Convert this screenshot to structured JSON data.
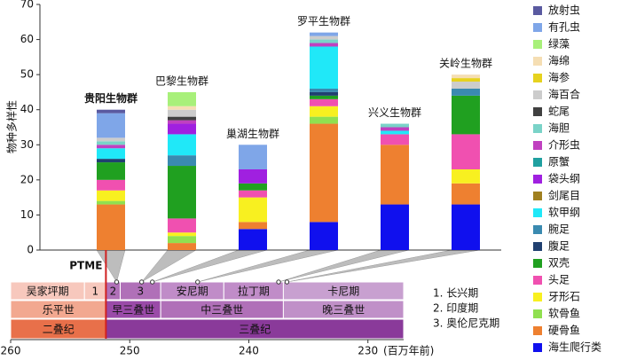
{
  "chart_data": {
    "type": "stacked-bar",
    "ylabel": "物种多样性",
    "ylim": [
      0,
      70
    ],
    "yticks": [
      0,
      10,
      20,
      30,
      40,
      50,
      60,
      70
    ],
    "categories": [
      "贵阳生物群",
      "巴黎生物群",
      "巢湖生物群",
      "罗平生物群",
      "兴义生物群",
      "关岭生物群"
    ],
    "ages": [
      251.1,
      249.0,
      248.1,
      244.3,
      237.5,
      236.8
    ],
    "series": [
      {
        "name": "放射虫",
        "color": "#5a5aa0",
        "values": [
          1,
          0,
          0,
          0,
          0,
          0
        ]
      },
      {
        "name": "有孔虫",
        "color": "#7fa6e8",
        "values": [
          7,
          0,
          7,
          1,
          0,
          0
        ]
      },
      {
        "name": "绿藻",
        "color": "#a8f07a",
        "values": [
          0,
          4,
          0,
          0,
          0,
          0
        ]
      },
      {
        "name": "海绵",
        "color": "#f5deb3",
        "values": [
          0,
          1,
          0,
          0,
          0,
          1
        ]
      },
      {
        "name": "海参",
        "color": "#e6d21e",
        "values": [
          0,
          0,
          0,
          0,
          0,
          1
        ]
      },
      {
        "name": "海百合",
        "color": "#cccccc",
        "values": [
          1,
          2,
          0,
          1,
          0,
          2
        ]
      },
      {
        "name": "蛇尾",
        "color": "#404040",
        "values": [
          0,
          1,
          0,
          0,
          0,
          0
        ]
      },
      {
        "name": "海胆",
        "color": "#7ad3c8",
        "values": [
          1,
          0,
          0,
          1,
          1,
          0
        ]
      },
      {
        "name": "介形虫",
        "color": "#c040c0",
        "values": [
          1,
          1,
          0,
          1,
          1,
          0
        ]
      },
      {
        "name": "原蟹",
        "color": "#20a0a0",
        "values": [
          0,
          0,
          0,
          0,
          0,
          0
        ]
      },
      {
        "name": "袋头纲",
        "color": "#a020e0",
        "values": [
          0,
          3,
          4,
          0,
          0,
          0
        ]
      },
      {
        "name": "剑尾目",
        "color": "#a08020",
        "values": [
          0,
          0,
          0,
          0,
          0,
          0
        ]
      },
      {
        "name": "软甲纲",
        "color": "#20e8f8",
        "values": [
          3,
          6,
          0,
          12,
          1,
          0
        ]
      },
      {
        "name": "腕足",
        "color": "#3a8ab0",
        "values": [
          0,
          3,
          0,
          1,
          0,
          2
        ]
      },
      {
        "name": "腹足",
        "color": "#204070",
        "values": [
          1,
          0,
          0,
          1,
          0,
          0
        ]
      },
      {
        "name": "双壳",
        "color": "#20a020",
        "values": [
          5,
          15,
          2,
          1,
          0,
          11
        ]
      },
      {
        "name": "头足",
        "color": "#f050b0",
        "values": [
          3,
          4,
          2,
          2,
          3,
          10
        ]
      },
      {
        "name": "牙形石",
        "color": "#f8f020",
        "values": [
          3,
          1,
          7,
          3,
          0,
          4
        ]
      },
      {
        "name": "软骨鱼",
        "color": "#90e050",
        "values": [
          1,
          2,
          0,
          2,
          0,
          0
        ]
      },
      {
        "name": "硬骨鱼",
        "color": "#ee8030",
        "values": [
          13,
          2,
          2,
          28,
          17,
          6
        ]
      },
      {
        "name": "海生爬行类",
        "color": "#1010ee",
        "values": [
          0,
          0,
          6,
          8,
          13,
          13
        ]
      }
    ]
  },
  "timescale": {
    "xlim": [
      260,
      227
    ],
    "xticks": [
      260,
      250,
      240,
      230
    ],
    "xlabel": "(百万年前)",
    "ptme": {
      "label": "PTME",
      "value": 252,
      "color": "#d02020"
    },
    "rows": [
      [
        {
          "name": "吴家坪期",
          "start": 260,
          "end": 253.8,
          "color": "#f7c8bd"
        },
        {
          "name": "1",
          "start": 253.8,
          "end": 252,
          "color": "#f7c8bd"
        },
        {
          "name": "2",
          "start": 252,
          "end": 250.8,
          "color": "#b070b8"
        },
        {
          "name": "3",
          "start": 250.8,
          "end": 247.4,
          "color": "#b070b8"
        },
        {
          "name": "安尼期",
          "start": 247.4,
          "end": 242.1,
          "color": "#c08cc8"
        },
        {
          "name": "拉丁期",
          "start": 242.1,
          "end": 237.1,
          "color": "#c08cc8"
        },
        {
          "name": "卡尼期",
          "start": 237.1,
          "end": 227,
          "color": "#c8a0d0"
        }
      ],
      [
        {
          "name": "乐平世",
          "start": 260,
          "end": 252,
          "color": "#f2a890"
        },
        {
          "name": "早三叠世",
          "start": 252,
          "end": 247.4,
          "color": "#9a4aa8"
        },
        {
          "name": "中三叠世",
          "start": 247.4,
          "end": 237.1,
          "color": "#b070b8"
        },
        {
          "name": "晚三叠世",
          "start": 237.1,
          "end": 227,
          "color": "#c090c8"
        }
      ],
      [
        {
          "name": "二叠纪",
          "start": 260,
          "end": 252,
          "color": "#e8704a"
        },
        {
          "name": "三叠纪",
          "start": 252,
          "end": 227,
          "color": "#8a3a9a"
        }
      ]
    ],
    "notes": [
      "1.  长兴期",
      "2.  印度期",
      "3.  奥伦尼克期"
    ]
  }
}
